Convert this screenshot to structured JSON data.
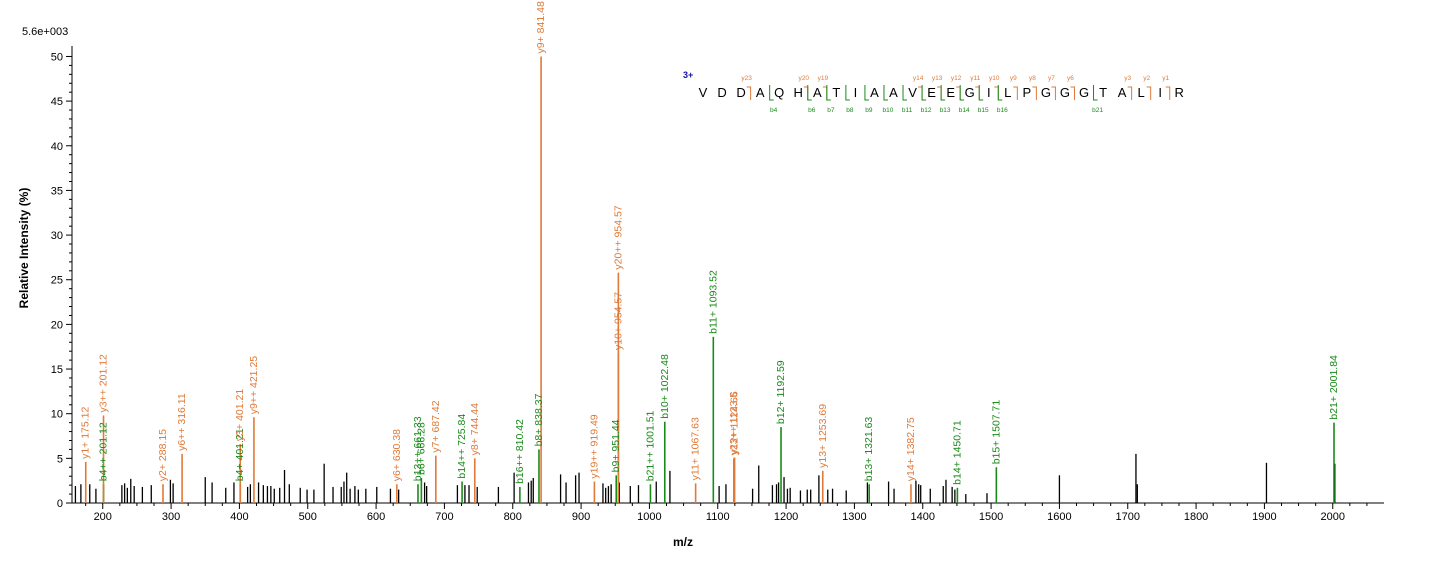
{
  "colors": {
    "y": "#e07a38",
    "b": "#1a8a1a",
    "unassigned": "#000000",
    "charge": "#1010a0"
  },
  "chart_data": {
    "type": "bar",
    "scale_label": "5.6e+003",
    "xlabel": "m/z",
    "ylabel": "Relative   Intensity (%)",
    "xlim": [
      155,
      2075
    ],
    "ylim": [
      0,
      50.5
    ],
    "xticks": [
      200,
      300,
      400,
      500,
      600,
      700,
      800,
      900,
      1000,
      1100,
      1200,
      1300,
      1400,
      1500,
      1600,
      1700,
      1800,
      1900,
      2000
    ],
    "yticks": [
      0,
      5,
      10,
      15,
      20,
      25,
      30,
      35,
      40,
      45,
      50
    ],
    "labeled_peaks": [
      {
        "mz": 175.12,
        "intensity": 4.6,
        "ion": "y",
        "label": "y1+ 175.12"
      },
      {
        "mz": 201.12,
        "intensity": 2.1,
        "ion": "b",
        "label": "b4++ 201.12"
      },
      {
        "mz": 201.12,
        "intensity": 9.8,
        "ion": "y",
        "label": "y3++ 201.12"
      },
      {
        "mz": 288.15,
        "intensity": 2.1,
        "ion": "y",
        "label": "y2+ 288.15"
      },
      {
        "mz": 316.11,
        "intensity": 5.5,
        "ion": "y",
        "label": "y6++ 316.11"
      },
      {
        "mz": 401.21,
        "intensity": 2.1,
        "ion": "b",
        "label": "b4+ 401.21"
      },
      {
        "mz": 401.21,
        "intensity": 6.6,
        "ion": "y",
        "label": "y3+ 401.21"
      },
      {
        "mz": 421.25,
        "intensity": 9.6,
        "ion": "y",
        "label": "y9++ 421.25"
      },
      {
        "mz": 630.38,
        "intensity": 2.1,
        "ion": "y",
        "label": "y6+ 630.38"
      },
      {
        "mz": 661.33,
        "intensity": 2.1,
        "ion": "b",
        "label": "b13++ 661.33"
      },
      {
        "mz": 666.28,
        "intensity": 2.8,
        "ion": "b",
        "label": "b6+ 666.28"
      },
      {
        "mz": 687.42,
        "intensity": 5.3,
        "ion": "y",
        "label": "y7+ 687.42"
      },
      {
        "mz": 725.84,
        "intensity": 2.4,
        "ion": "b",
        "label": "b14++ 725.84"
      },
      {
        "mz": 744.44,
        "intensity": 5.0,
        "ion": "y",
        "label": "y8+ 744.44"
      },
      {
        "mz": 810.42,
        "intensity": 1.8,
        "ion": "b",
        "label": "b16++ 810.42"
      },
      {
        "mz": 838.37,
        "intensity": 6.0,
        "ion": "b",
        "label": "b8+ 838.37"
      },
      {
        "mz": 841.48,
        "intensity": 50.0,
        "ion": "y",
        "label": "y9+ 841.48"
      },
      {
        "mz": 919.49,
        "intensity": 2.4,
        "ion": "y",
        "label": "y19++ 919.49"
      },
      {
        "mz": 951.44,
        "intensity": 3.1,
        "ion": "b",
        "label": "b9+ 951.44"
      },
      {
        "mz": 954.57,
        "intensity": 16.8,
        "ion": "y",
        "label": "y10+ 954.57"
      },
      {
        "mz": 954.57,
        "intensity": 25.8,
        "ion": "y",
        "label": "y20++ 954.57"
      },
      {
        "mz": 1001.51,
        "intensity": 2.1,
        "ion": "b",
        "label": "b21++ 1001.51"
      },
      {
        "mz": 1022.48,
        "intensity": 9.1,
        "ion": "b",
        "label": "b10+ 1022.48"
      },
      {
        "mz": 1067.63,
        "intensity": 2.2,
        "ion": "y",
        "label": "y11+ 1067.63"
      },
      {
        "mz": 1093.52,
        "intensity": 18.6,
        "ion": "b",
        "label": "b11+ 1093.52"
      },
      {
        "mz": 1123.5,
        "intensity": 5.0,
        "ion": "y",
        "label": "y23++ 1123.5"
      },
      {
        "mz": 1124.66,
        "intensity": 5.1,
        "ion": "y",
        "label": "y12+ 1124.66"
      },
      {
        "mz": 1192.59,
        "intensity": 8.5,
        "ion": "b",
        "label": "b12+ 1192.59"
      },
      {
        "mz": 1253.69,
        "intensity": 3.6,
        "ion": "y",
        "label": "y13+ 1253.69"
      },
      {
        "mz": 1321.63,
        "intensity": 2.1,
        "ion": "b",
        "label": "b13+ 1321.63"
      },
      {
        "mz": 1382.75,
        "intensity": 2.1,
        "ion": "y",
        "label": "y14+ 1382.75"
      },
      {
        "mz": 1450.71,
        "intensity": 1.7,
        "ion": "b",
        "label": "b14+ 1450.71"
      },
      {
        "mz": 1507.71,
        "intensity": 4.0,
        "ion": "b",
        "label": "b15+ 1507.71"
      },
      {
        "mz": 2001.84,
        "intensity": 9.0,
        "ion": "b",
        "label": "b21+ 2001.84"
      }
    ],
    "unlabeled_peaks": [
      [
        160,
        1.9
      ],
      [
        168,
        2.1
      ],
      [
        181,
        2.1
      ],
      [
        190,
        1.6
      ],
      [
        228,
        2.0
      ],
      [
        232,
        2.2
      ],
      [
        236,
        1.7
      ],
      [
        241,
        2.7
      ],
      [
        246,
        1.9
      ],
      [
        258,
        1.8
      ],
      [
        271,
        2.0
      ],
      [
        299,
        2.6
      ],
      [
        303,
        2.2
      ],
      [
        350,
        2.9
      ],
      [
        360,
        2.3
      ],
      [
        380,
        1.7
      ],
      [
        392,
        2.3
      ],
      [
        412,
        1.8
      ],
      [
        416,
        2.1
      ],
      [
        428,
        2.3
      ],
      [
        435,
        2.0
      ],
      [
        441,
        1.9
      ],
      [
        446,
        1.9
      ],
      [
        451,
        1.6
      ],
      [
        459,
        1.7
      ],
      [
        466,
        3.7
      ],
      [
        473,
        2.1
      ],
      [
        489,
        1.7
      ],
      [
        499,
        1.5
      ],
      [
        509,
        1.5
      ],
      [
        524,
        4.4
      ],
      [
        537,
        1.8
      ],
      [
        549,
        1.8
      ],
      [
        553,
        2.4
      ],
      [
        557,
        3.4
      ],
      [
        562,
        1.6
      ],
      [
        569,
        1.9
      ],
      [
        574,
        1.5
      ],
      [
        585,
        1.6
      ],
      [
        601,
        1.8
      ],
      [
        621,
        1.6
      ],
      [
        633,
        1.5
      ],
      [
        671,
        2.3
      ],
      [
        674,
        1.9
      ],
      [
        719,
        2.0
      ],
      [
        730,
        2.0
      ],
      [
        736,
        2.0
      ],
      [
        748,
        1.8
      ],
      [
        779,
        1.8
      ],
      [
        802,
        3.4
      ],
      [
        823,
        2.3
      ],
      [
        827,
        2.5
      ],
      [
        830,
        2.8
      ],
      [
        870,
        3.2
      ],
      [
        878,
        2.3
      ],
      [
        892,
        3.1
      ],
      [
        897,
        3.4
      ],
      [
        932,
        2.2
      ],
      [
        936,
        1.7
      ],
      [
        940,
        1.9
      ],
      [
        944,
        2.1
      ],
      [
        956,
        2.3
      ],
      [
        972,
        1.9
      ],
      [
        984,
        2.0
      ],
      [
        1010,
        2.4
      ],
      [
        1030,
        3.6
      ],
      [
        1102,
        1.9
      ],
      [
        1112,
        2.1
      ],
      [
        1151,
        1.6
      ],
      [
        1160,
        4.2
      ],
      [
        1180,
        2.0
      ],
      [
        1186,
        2.1
      ],
      [
        1189,
        2.3
      ],
      [
        1197,
        2.9
      ],
      [
        1202,
        1.6
      ],
      [
        1206,
        1.7
      ],
      [
        1221,
        1.4
      ],
      [
        1231,
        1.5
      ],
      [
        1236,
        1.5
      ],
      [
        1248,
        3.1
      ],
      [
        1261,
        1.5
      ],
      [
        1268,
        1.6
      ],
      [
        1288,
        1.4
      ],
      [
        1319,
        2.3
      ],
      [
        1350,
        2.4
      ],
      [
        1358,
        1.6
      ],
      [
        1390,
        2.5
      ],
      [
        1394,
        2.1
      ],
      [
        1397,
        2.0
      ],
      [
        1411,
        1.6
      ],
      [
        1430,
        1.9
      ],
      [
        1434,
        2.6
      ],
      [
        1443,
        1.8
      ],
      [
        1447,
        1.5
      ],
      [
        1463,
        1.0
      ],
      [
        1494,
        1.1
      ],
      [
        1600,
        3.1
      ],
      [
        1712,
        5.5
      ],
      [
        1714,
        2.1
      ],
      [
        1903,
        4.5
      ],
      [
        2003,
        4.4
      ]
    ]
  },
  "sequence": {
    "charge_label": "3+",
    "residues": [
      "V",
      "D",
      "D",
      "A",
      "Q",
      "H",
      "A",
      "T",
      "I",
      "A",
      "A",
      "V",
      "E",
      "E",
      "G",
      "I",
      "L",
      "P",
      "G",
      "G",
      "G",
      "T",
      "A",
      "L",
      "I",
      "R"
    ],
    "y_ions": [
      {
        "after": 3,
        "label": "y23"
      },
      {
        "after": 6,
        "label": "y20"
      },
      {
        "after": 7,
        "label": "y19"
      },
      {
        "after": 12,
        "label": "y14"
      },
      {
        "after": 13,
        "label": "y13"
      },
      {
        "after": 14,
        "label": "y12"
      },
      {
        "after": 15,
        "label": "y11"
      },
      {
        "after": 16,
        "label": "y10"
      },
      {
        "after": 17,
        "label": "y9"
      },
      {
        "after": 18,
        "label": "y8"
      },
      {
        "after": 19,
        "label": "y7"
      },
      {
        "after": 20,
        "label": "y6"
      },
      {
        "after": 23,
        "label": "y3"
      },
      {
        "after": 24,
        "label": "y2"
      },
      {
        "after": 25,
        "label": "y1"
      }
    ],
    "b_ions": [
      {
        "after": 4,
        "label": "b4"
      },
      {
        "after": 6,
        "label": "b6"
      },
      {
        "after": 7,
        "label": "b7"
      },
      {
        "after": 8,
        "label": "b8"
      },
      {
        "after": 9,
        "label": "b9"
      },
      {
        "after": 10,
        "label": "b10"
      },
      {
        "after": 11,
        "label": "b11"
      },
      {
        "after": 12,
        "label": "b12"
      },
      {
        "after": 13,
        "label": "b13"
      },
      {
        "after": 14,
        "label": "b14"
      },
      {
        "after": 15,
        "label": "b15"
      },
      {
        "after": 16,
        "label": "b16"
      },
      {
        "after": 21,
        "label": "b21"
      }
    ]
  }
}
